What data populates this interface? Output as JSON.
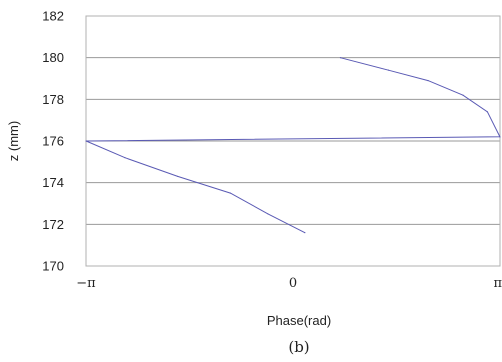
{
  "chart_data": {
    "type": "line",
    "xlabel": "Phase(rad)",
    "ylabel": "z (mm)",
    "caption": "(b)",
    "xlim": [
      -3.14159,
      3.14159
    ],
    "ylim": [
      170,
      182
    ],
    "x_ticks": [
      {
        "value": -3.14159,
        "label": "−π"
      },
      {
        "value": 0,
        "label": "0"
      },
      {
        "value": 3.14159,
        "label": "π"
      }
    ],
    "y_ticks": [
      170,
      172,
      174,
      176,
      178,
      180,
      182
    ],
    "grid": "horizontal",
    "line_color": "#5a5ab4",
    "series": [
      {
        "x": [
          0.72,
          1.45,
          2.05,
          2.58,
          2.95,
          3.14,
          -3.14,
          -2.55,
          -1.75,
          -0.95,
          -0.38,
          0.18
        ],
        "y": [
          180.0,
          179.4,
          178.9,
          178.2,
          177.4,
          176.2,
          176.0,
          175.2,
          174.3,
          173.5,
          172.5,
          171.6
        ]
      }
    ]
  }
}
